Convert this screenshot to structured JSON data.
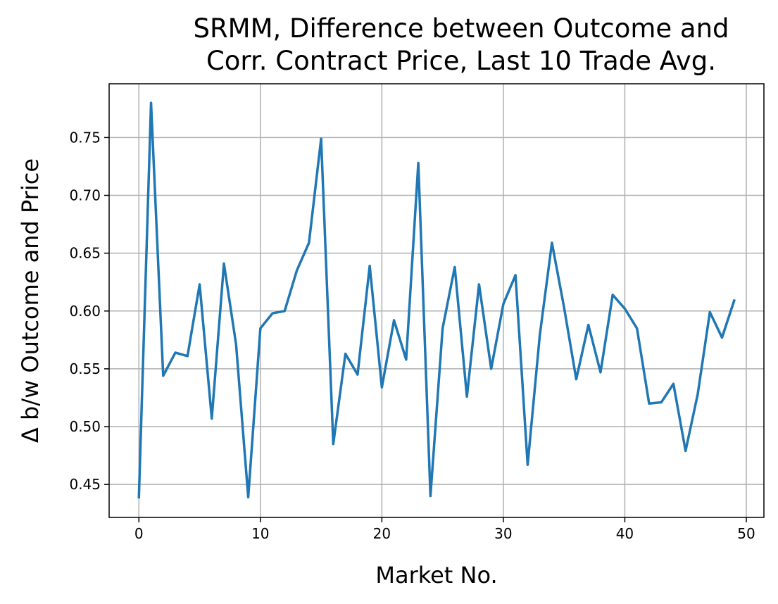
{
  "chart_data": {
    "type": "line",
    "title_lines": [
      "SRMM, Difference between Outcome and",
      "Corr. Contract Price, Last 10 Trade Avg."
    ],
    "xlabel": "Market No.",
    "ylabel": "Δ b/w Outcome and Price",
    "xlim": [
      -2.45,
      51.45
    ],
    "ylim": [
      0.4215,
      0.7965
    ],
    "xticks": [
      0,
      10,
      20,
      30,
      40,
      50
    ],
    "yticks": [
      0.45,
      0.5,
      0.55,
      0.6,
      0.65,
      0.7,
      0.75
    ],
    "ytick_labels": [
      "0.45",
      "0.50",
      "0.55",
      "0.60",
      "0.65",
      "0.70",
      "0.75"
    ],
    "grid": true,
    "series": [
      {
        "color": "#1f77b4",
        "x": [
          0,
          1,
          2,
          3,
          4,
          5,
          6,
          7,
          8,
          9,
          10,
          11,
          12,
          13,
          14,
          15,
          16,
          17,
          18,
          19,
          20,
          21,
          22,
          23,
          24,
          25,
          26,
          27,
          28,
          29,
          30,
          31,
          32,
          33,
          34,
          35,
          36,
          37,
          38,
          39,
          40,
          41,
          42,
          43,
          44,
          45,
          46,
          47,
          48,
          49
        ],
        "values": [
          0.439,
          0.78,
          0.544,
          0.564,
          0.561,
          0.623,
          0.507,
          0.641,
          0.571,
          0.439,
          0.585,
          0.598,
          0.6,
          0.635,
          0.659,
          0.749,
          0.485,
          0.563,
          0.545,
          0.639,
          0.534,
          0.592,
          0.558,
          0.728,
          0.44,
          0.585,
          0.638,
          0.526,
          0.623,
          0.55,
          0.606,
          0.631,
          0.467,
          0.579,
          0.659,
          0.603,
          0.541,
          0.588,
          0.547,
          0.614,
          0.602,
          0.585,
          0.52,
          0.521,
          0.537,
          0.479,
          0.528,
          0.599,
          0.577,
          0.609
        ]
      }
    ]
  }
}
